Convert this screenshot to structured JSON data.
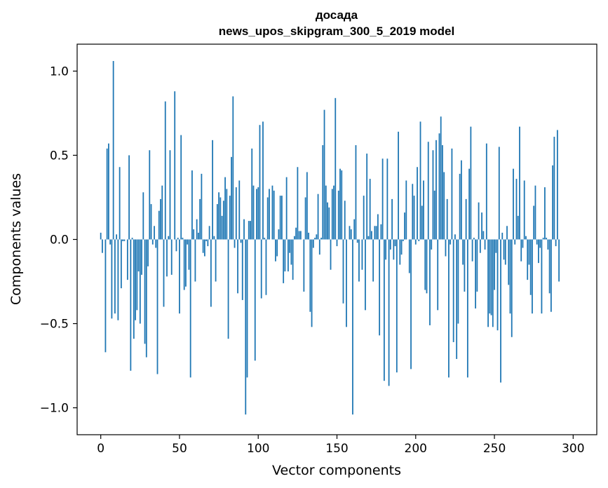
{
  "chart_data": {
    "type": "bar",
    "title": "досада",
    "subtitle": "news_upos_skipgram_300_5_2019 model",
    "xlabel": "Vector components",
    "ylabel": "Components values",
    "xlim": [
      -15,
      315
    ],
    "ylim": [
      -1.16,
      1.16
    ],
    "xticks": [
      0,
      50,
      100,
      150,
      200,
      250,
      300
    ],
    "xtick_labels": [
      "0",
      "50",
      "100",
      "150",
      "200",
      "250",
      "300"
    ],
    "yticks": [
      -1.0,
      -0.5,
      0.0,
      0.5,
      1.0
    ],
    "ytick_labels": [
      "−1.0",
      "−0.5",
      "0.0",
      "0.5",
      "1.0"
    ],
    "grid": false,
    "legend": "none",
    "bar_color": "#1f77b4",
    "values": [
      0.04,
      -0.08,
      0.0,
      -0.67,
      0.54,
      0.57,
      -0.03,
      -0.47,
      1.06,
      -0.44,
      0.03,
      -0.48,
      0.43,
      -0.29,
      -0.01,
      -0.01,
      0.0,
      -0.24,
      0.5,
      -0.78,
      0.01,
      -0.59,
      -0.48,
      -0.42,
      -0.19,
      -0.5,
      -0.21,
      0.28,
      -0.62,
      -0.7,
      -0.16,
      0.53,
      0.21,
      -0.03,
      0.08,
      -0.05,
      -0.8,
      0.17,
      0.24,
      0.32,
      -0.4,
      0.82,
      -0.22,
      0.02,
      0.53,
      -0.21,
      0.0,
      0.88,
      -0.07,
      0.01,
      -0.44,
      0.62,
      0.01,
      -0.3,
      -0.28,
      -0.03,
      -0.18,
      -0.82,
      0.41,
      0.06,
      -0.25,
      0.12,
      0.04,
      0.24,
      0.39,
      -0.08,
      -0.1,
      -0.01,
      -0.04,
      0.08,
      -0.4,
      0.59,
      0.02,
      -0.25,
      0.21,
      0.28,
      0.25,
      0.14,
      0.23,
      0.37,
      0.3,
      -0.59,
      0.26,
      0.49,
      0.85,
      -0.05,
      0.31,
      -0.32,
      0.35,
      -0.02,
      -0.36,
      0.12,
      -1.04,
      -0.82,
      0.11,
      0.11,
      0.54,
      0.32,
      -0.72,
      0.3,
      0.31,
      0.68,
      -0.35,
      0.7,
      0.01,
      -0.33,
      0.25,
      0.3,
      0.0,
      0.32,
      0.29,
      -0.13,
      -0.1,
      0.06,
      0.26,
      0.26,
      -0.26,
      -0.19,
      0.37,
      -0.19,
      -0.08,
      -0.15,
      -0.24,
      0.02,
      0.07,
      0.43,
      0.05,
      0.05,
      0.0,
      -0.31,
      0.25,
      0.4,
      0.04,
      -0.43,
      -0.52,
      -0.05,
      0.01,
      0.03,
      0.27,
      -0.09,
      0.01,
      0.56,
      0.77,
      0.32,
      0.22,
      0.19,
      -0.18,
      0.3,
      0.32,
      0.84,
      -0.04,
      0.29,
      0.42,
      0.41,
      -0.38,
      0.23,
      -0.52,
      0.0,
      0.08,
      0.06,
      -1.04,
      0.12,
      0.56,
      -0.02,
      -0.25,
      0.0,
      -0.18,
      0.26,
      -0.42,
      0.51,
      0.02,
      0.36,
      0.05,
      -0.25,
      0.08,
      0.08,
      0.15,
      -0.57,
      0.09,
      0.48,
      -0.84,
      -0.12,
      0.48,
      -0.87,
      -0.06,
      0.24,
      -0.12,
      -0.04,
      -0.79,
      0.64,
      -0.15,
      -0.09,
      -0.01,
      0.16,
      0.35,
      0.0,
      -0.2,
      -0.77,
      0.33,
      0.26,
      -0.03,
      0.43,
      -0.01,
      0.7,
      0.2,
      0.35,
      -0.3,
      -0.32,
      0.58,
      -0.51,
      -0.06,
      0.53,
      0.29,
      0.59,
      -0.42,
      0.63,
      0.73,
      0.56,
      0.4,
      -0.1,
      0.24,
      -0.82,
      -0.03,
      0.54,
      -0.61,
      0.03,
      -0.71,
      -0.5,
      0.39,
      0.47,
      -0.15,
      -0.31,
      0.24,
      -0.82,
      0.42,
      0.67,
      -0.13,
      0.01,
      -0.41,
      -0.31,
      0.22,
      -0.08,
      0.16,
      0.05,
      -0.06,
      0.57,
      -0.52,
      -0.44,
      -0.45,
      -0.52,
      -0.3,
      -0.08,
      -0.54,
      0.55,
      -0.85,
      0.04,
      -0.12,
      -0.15,
      0.08,
      -0.27,
      -0.44,
      -0.58,
      0.42,
      -0.03,
      0.36,
      0.14,
      0.67,
      -0.13,
      -0.05,
      0.35,
      0.02,
      -0.24,
      -0.15,
      -0.33,
      -0.44,
      0.2,
      0.32,
      -0.03,
      -0.14,
      -0.05,
      -0.44,
      0.01,
      0.31,
      0.01,
      -0.06,
      -0.32,
      -0.43,
      0.44,
      0.61,
      -0.04,
      0.65,
      -0.25
    ]
  }
}
